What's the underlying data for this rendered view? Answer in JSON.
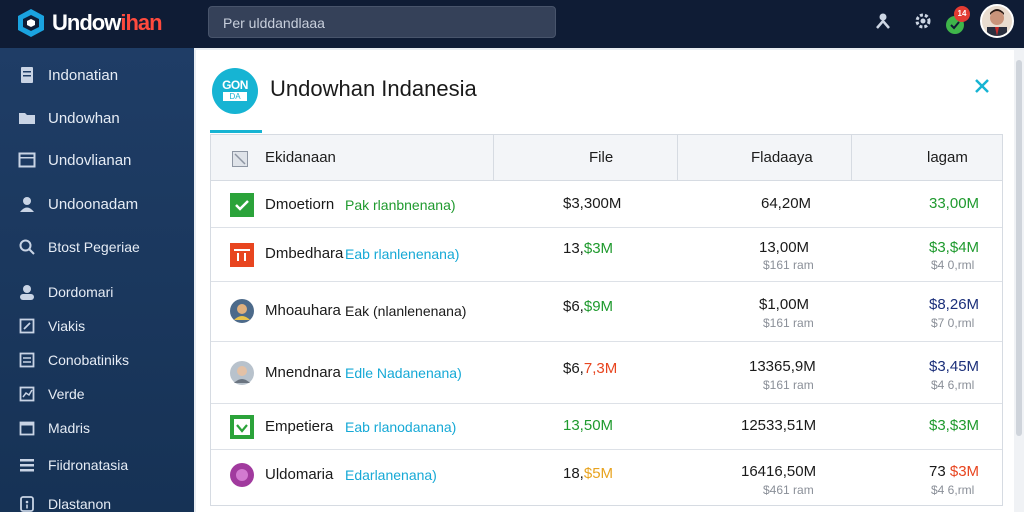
{
  "app": {
    "brand_main": "Undow",
    "brand_accent": "ihan",
    "search_placeholder": "Per ulddandlaaa"
  },
  "colors": {
    "topbar": "#0f1c35",
    "sidebar": "#1f3d66",
    "accent": "#16b4d3",
    "green": "#1f9a2e",
    "red": "#e8451f",
    "navy": "#1b2f7a"
  },
  "topbar_icons": [
    "person-icon",
    "settings-icon",
    "notification-icon",
    "user-avatar"
  ],
  "notification_count": "14",
  "sidebar": {
    "items": [
      {
        "label": "Indonatian",
        "icon": "document-icon"
      },
      {
        "label": "Undowhan",
        "icon": "folder-icon"
      },
      {
        "label": "Undovlianan",
        "icon": "window-icon"
      },
      {
        "label": "Undoonadam",
        "icon": "user-icon"
      },
      {
        "label": "Btost Pegeriae",
        "icon": "search-icon"
      },
      {
        "label": "Dordomari",
        "icon": "user-group-icon"
      },
      {
        "label": "Viakis",
        "icon": "edit-icon"
      },
      {
        "label": "Conobatiniks",
        "icon": "contacts-icon"
      },
      {
        "label": "Verde",
        "icon": "chart-icon"
      },
      {
        "label": "Madris",
        "icon": "calendar-icon"
      },
      {
        "label": "Fiidronatasia",
        "icon": "list-icon"
      },
      {
        "label": "Dlastanon",
        "icon": "info-icon"
      }
    ]
  },
  "panel": {
    "badge_top": "GON",
    "badge_bottom": "DA",
    "title": "Undowhan Indanesia"
  },
  "table": {
    "headers": [
      "Ekidanaan",
      "File",
      "Fladaaya",
      "lagam"
    ],
    "rows": [
      {
        "icon": "check-icon",
        "name": "Dmoetiorn",
        "desc": "Pak rlanbnenana)",
        "desc_color": "#1f9a2e",
        "file": "$3,300M",
        "file_color": "#1a1a1a",
        "f2": "64,20M",
        "f2_sub": "",
        "lagam": "33,00M",
        "lagam_color": "#1f9a2e",
        "lagam_sub": ""
      },
      {
        "icon": "flag-icon",
        "name": "Dmbedhara",
        "desc": "Eab rlanlenenana)",
        "desc_color": "#16a9d6",
        "file_a": "13,",
        "file_b": "$3M",
        "file_b_color": "#1f9a2e",
        "f2": "13,00M",
        "f2_sub": "$161 ram",
        "lagam": "$3,$4M",
        "lagam_color": "#1f9a2e",
        "lagam_sub": "$4 0,rml"
      },
      {
        "icon": "person-photo-icon",
        "name": "Mhoauhara",
        "desc": "Eak (nlanlenenana)",
        "desc_color": "#1a1a1a",
        "file_a": "$6,",
        "file_b": "$9M",
        "file_b_color": "#1f9a2e",
        "f2": "$1,00M",
        "f2_sub": "$161 ram",
        "lagam": "$8,26M",
        "lagam_color": "#1b2f7a",
        "lagam_sub": "$7 0,rml"
      },
      {
        "icon": "person-photo-icon",
        "name": "Mnendnara",
        "desc": "Edle Nadanenana)",
        "desc_color": "#16a9d6",
        "file_a": "$6,",
        "file_b": "7,3M",
        "file_b_color": "#e8451f",
        "f2": "13365,9M",
        "f2_sub": "$161 ram",
        "lagam": "$3,45M",
        "lagam_color": "#1b2f7a",
        "lagam_sub": "$4 6,rml"
      },
      {
        "icon": "checkmark-icon",
        "name": "Empetiera",
        "desc": "Eab rlanodanana)",
        "desc_color": "#16a9d6",
        "file": "13,50M",
        "file_color": "#1f9a2e",
        "f2": "12533,51M",
        "f2_sub": "",
        "lagam": "$3,$3M",
        "lagam_color": "#1f9a2e",
        "lagam_sub": ""
      },
      {
        "icon": "circle-icon",
        "name": "Uldomaria",
        "desc": "Edarlanenana)",
        "desc_color": "#16a9d6",
        "file_a": "18,",
        "file_b": "$5M",
        "file_b_color": "#e8a31f",
        "f2": "16416,50M",
        "f2_sub": "$461 ram",
        "lagam_a": "73",
        "lagam_b": "$3M",
        "lagam_b_color": "#e8451f",
        "lagam_sub": "$4 6,rml"
      }
    ]
  }
}
